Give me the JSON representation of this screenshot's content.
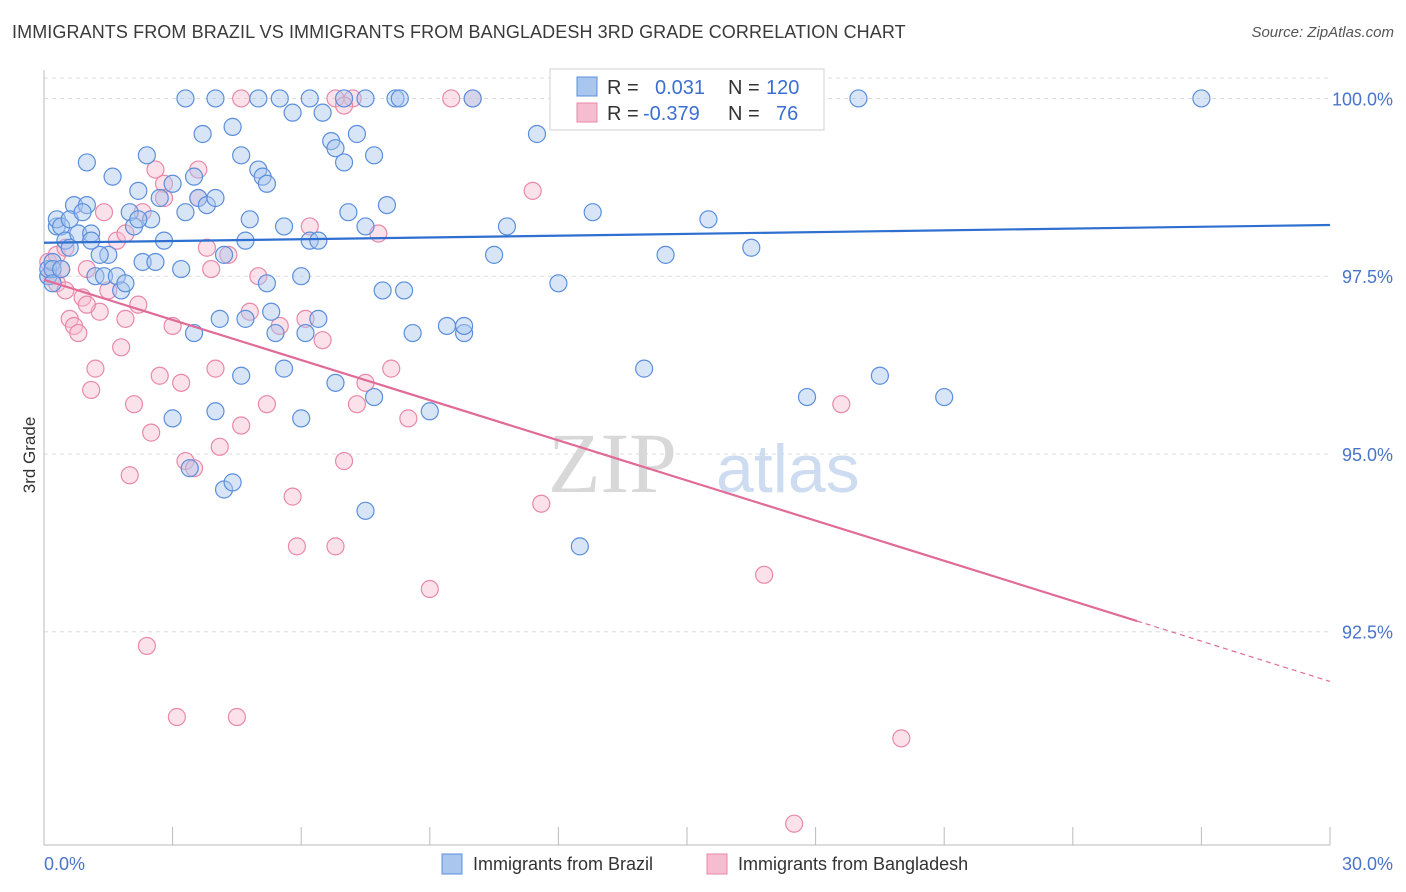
{
  "title": "IMMIGRANTS FROM BRAZIL VS IMMIGRANTS FROM BANGLADESH 3RD GRADE CORRELATION CHART",
  "source": "Source: ZipAtlas.com",
  "watermark": {
    "zip": "ZIP",
    "atlas": "atlas"
  },
  "colors": {
    "blue_fill": "#a9c6ee",
    "blue_stroke": "#5b8fdc",
    "blue_line": "#2e6fd0",
    "pink_fill": "#f6bcd0",
    "pink_stroke": "#e889a8",
    "pink_line": "#e06b98",
    "axis_label": "#4a74c9",
    "grid": "#dddddd"
  },
  "stats": {
    "brazil": {
      "r_label": "R =",
      "r_value": "0.031",
      "n_label": "N =",
      "n_value": "120"
    },
    "bangladesh": {
      "r_label": "R =",
      "r_value": "-0.379",
      "n_label": "N =",
      "n_value": "76"
    }
  },
  "chart_data": {
    "type": "scatter",
    "title": "IMMIGRANTS FROM BRAZIL VS IMMIGRANTS FROM BANGLADESH 3RD GRADE CORRELATION CHART",
    "ylabel": "3rd Grade",
    "xlabel": "",
    "xlim": [
      0,
      30
    ],
    "ylim": [
      89.5,
      100.4
    ],
    "x_tick_labels": [
      "0.0%",
      "30.0%"
    ],
    "y_ticks": [
      92.5,
      95.0,
      97.5,
      100.0
    ],
    "y_tick_labels": [
      "92.5%",
      "95.0%",
      "97.5%",
      "100.0%"
    ],
    "grid": "horizontal dashed",
    "legend_position": "bottom-center",
    "series": [
      {
        "name": "Immigrants from Brazil",
        "color": "blue",
        "trend": {
          "x0": 0,
          "y0": 97.97,
          "x1": 30,
          "y1": 98.22
        },
        "points": [
          [
            0.1,
            97.5
          ],
          [
            0.1,
            97.6
          ],
          [
            0.2,
            97.7
          ],
          [
            0.2,
            97.6
          ],
          [
            0.3,
            98.2
          ],
          [
            0.3,
            98.3
          ],
          [
            0.4,
            98.2
          ],
          [
            0.5,
            98.0
          ],
          [
            0.6,
            97.9
          ],
          [
            0.7,
            98.5
          ],
          [
            0.8,
            98.1
          ],
          [
            1.0,
            98.5
          ],
          [
            1.1,
            98.1
          ],
          [
            1.2,
            97.5
          ],
          [
            1.4,
            97.5
          ],
          [
            1.5,
            97.8
          ],
          [
            1.6,
            98.9
          ],
          [
            1.7,
            97.5
          ],
          [
            1.8,
            97.3
          ],
          [
            2.0,
            98.4
          ],
          [
            2.2,
            98.7
          ],
          [
            2.3,
            97.7
          ],
          [
            2.4,
            99.2
          ],
          [
            2.5,
            98.3
          ],
          [
            2.7,
            98.6
          ],
          [
            2.8,
            98.0
          ],
          [
            3.0,
            98.8
          ],
          [
            3.2,
            97.6
          ],
          [
            3.3,
            98.4
          ],
          [
            3.5,
            98.9
          ],
          [
            3.6,
            98.6
          ],
          [
            3.7,
            99.5
          ],
          [
            3.8,
            98.5
          ],
          [
            4.0,
            98.6
          ],
          [
            4.1,
            96.9
          ],
          [
            4.2,
            97.8
          ],
          [
            4.4,
            99.6
          ],
          [
            4.6,
            99.2
          ],
          [
            4.7,
            98.0
          ],
          [
            4.8,
            98.3
          ],
          [
            5.0,
            99.0
          ],
          [
            5.1,
            98.9
          ],
          [
            5.2,
            97.4
          ],
          [
            5.4,
            96.7
          ],
          [
            5.6,
            98.2
          ],
          [
            5.8,
            99.8
          ],
          [
            6.0,
            97.5
          ],
          [
            6.2,
            98.0
          ],
          [
            6.4,
            98.0
          ],
          [
            6.5,
            99.8
          ],
          [
            6.7,
            99.4
          ],
          [
            6.8,
            99.3
          ],
          [
            7.0,
            99.1
          ],
          [
            7.1,
            98.4
          ],
          [
            7.3,
            99.5
          ],
          [
            7.5,
            98.2
          ],
          [
            7.7,
            99.2
          ],
          [
            7.9,
            97.3
          ],
          [
            8.0,
            98.5
          ],
          [
            8.2,
            100.0
          ],
          [
            8.4,
            97.3
          ],
          [
            8.6,
            96.7
          ],
          [
            9.0,
            95.6
          ],
          [
            9.4,
            96.8
          ],
          [
            9.8,
            96.7
          ],
          [
            10.0,
            100.0
          ],
          [
            10.5,
            97.8
          ],
          [
            10.8,
            98.2
          ],
          [
            11.5,
            99.5
          ],
          [
            12.0,
            97.4
          ],
          [
            12.5,
            93.7
          ],
          [
            12.8,
            98.4
          ],
          [
            13.5,
            100.0
          ],
          [
            14.0,
            96.2
          ],
          [
            14.5,
            97.8
          ],
          [
            15.5,
            98.3
          ],
          [
            16.5,
            97.9
          ],
          [
            17.0,
            100.0
          ],
          [
            17.8,
            95.8
          ],
          [
            19.0,
            100.0
          ],
          [
            19.5,
            96.1
          ],
          [
            21.0,
            95.8
          ],
          [
            27.0,
            100.0
          ],
          [
            1.0,
            99.1
          ],
          [
            3.0,
            95.5
          ],
          [
            3.4,
            94.8
          ],
          [
            4.0,
            95.6
          ],
          [
            4.2,
            94.5
          ],
          [
            4.4,
            94.6
          ],
          [
            4.6,
            96.1
          ],
          [
            5.6,
            96.2
          ],
          [
            6.0,
            95.5
          ],
          [
            6.8,
            96.0
          ],
          [
            7.5,
            94.2
          ],
          [
            7.7,
            95.8
          ],
          [
            1.9,
            97.4
          ],
          [
            2.1,
            98.2
          ],
          [
            2.6,
            97.7
          ],
          [
            3.3,
            100.0
          ],
          [
            4.0,
            100.0
          ],
          [
            5.0,
            100.0
          ],
          [
            5.5,
            100.0
          ],
          [
            6.2,
            100.0
          ],
          [
            7.0,
            100.0
          ],
          [
            7.5,
            100.0
          ],
          [
            8.3,
            100.0
          ],
          [
            0.6,
            98.3
          ],
          [
            0.9,
            98.4
          ],
          [
            1.3,
            97.8
          ],
          [
            0.2,
            97.4
          ],
          [
            0.4,
            97.6
          ],
          [
            3.5,
            96.7
          ],
          [
            5.3,
            97.0
          ],
          [
            6.1,
            96.7
          ],
          [
            9.8,
            96.8
          ],
          [
            4.7,
            96.9
          ],
          [
            2.2,
            98.3
          ],
          [
            6.4,
            96.9
          ],
          [
            5.2,
            98.8
          ],
          [
            1.1,
            98.0
          ]
        ]
      },
      {
        "name": "Immigrants from Bangladesh",
        "color": "pink",
        "trend": {
          "x0": 0,
          "y0": 97.45,
          "x1": 25.5,
          "y1": 92.65,
          "dash_to_x": 30,
          "dash_to_y": 91.8
        },
        "points": [
          [
            0.1,
            97.5
          ],
          [
            0.1,
            97.7
          ],
          [
            0.2,
            97.5
          ],
          [
            0.3,
            97.4
          ],
          [
            0.4,
            97.6
          ],
          [
            0.5,
            97.3
          ],
          [
            0.6,
            96.9
          ],
          [
            0.7,
            96.8
          ],
          [
            0.8,
            96.7
          ],
          [
            1.0,
            97.6
          ],
          [
            1.1,
            95.9
          ],
          [
            1.2,
            96.2
          ],
          [
            1.3,
            97.0
          ],
          [
            1.5,
            97.3
          ],
          [
            1.7,
            98.0
          ],
          [
            1.8,
            96.5
          ],
          [
            1.9,
            96.9
          ],
          [
            2.0,
            94.7
          ],
          [
            2.1,
            95.7
          ],
          [
            2.2,
            97.1
          ],
          [
            2.4,
            92.3
          ],
          [
            2.5,
            95.3
          ],
          [
            2.6,
            99.0
          ],
          [
            2.7,
            96.1
          ],
          [
            2.8,
            98.8
          ],
          [
            3.0,
            96.8
          ],
          [
            3.1,
            91.3
          ],
          [
            3.2,
            96.0
          ],
          [
            3.3,
            94.9
          ],
          [
            3.5,
            94.8
          ],
          [
            3.6,
            98.6
          ],
          [
            3.8,
            97.9
          ],
          [
            4.0,
            96.2
          ],
          [
            4.1,
            95.1
          ],
          [
            4.3,
            97.8
          ],
          [
            4.5,
            91.3
          ],
          [
            4.6,
            95.4
          ],
          [
            4.8,
            97.0
          ],
          [
            5.0,
            97.5
          ],
          [
            5.2,
            95.7
          ],
          [
            5.5,
            96.8
          ],
          [
            5.8,
            94.4
          ],
          [
            5.9,
            93.7
          ],
          [
            6.2,
            98.2
          ],
          [
            6.5,
            96.6
          ],
          [
            6.8,
            93.7
          ],
          [
            7.0,
            94.9
          ],
          [
            7.3,
            95.7
          ],
          [
            7.5,
            96.0
          ],
          [
            7.8,
            98.1
          ],
          [
            8.1,
            96.2
          ],
          [
            8.5,
            95.5
          ],
          [
            9.0,
            93.1
          ],
          [
            9.5,
            100.0
          ],
          [
            11.4,
            98.7
          ],
          [
            11.6,
            94.3
          ],
          [
            16.8,
            93.3
          ],
          [
            17.5,
            89.8
          ],
          [
            18.6,
            95.7
          ],
          [
            20.0,
            91.0
          ],
          [
            0.9,
            97.2
          ],
          [
            1.4,
            98.4
          ],
          [
            1.9,
            98.1
          ],
          [
            2.3,
            98.4
          ],
          [
            3.6,
            99.0
          ],
          [
            4.6,
            100.0
          ],
          [
            6.8,
            100.0
          ],
          [
            7.2,
            100.0
          ],
          [
            7.0,
            99.9
          ],
          [
            10.0,
            100.0
          ],
          [
            0.3,
            97.8
          ],
          [
            0.5,
            97.9
          ],
          [
            1.0,
            97.1
          ],
          [
            2.8,
            98.6
          ],
          [
            3.9,
            97.6
          ],
          [
            6.1,
            96.9
          ]
        ]
      }
    ]
  },
  "legend": {
    "brazil": "Immigrants from Brazil",
    "bangladesh": "Immigrants from Bangladesh"
  }
}
